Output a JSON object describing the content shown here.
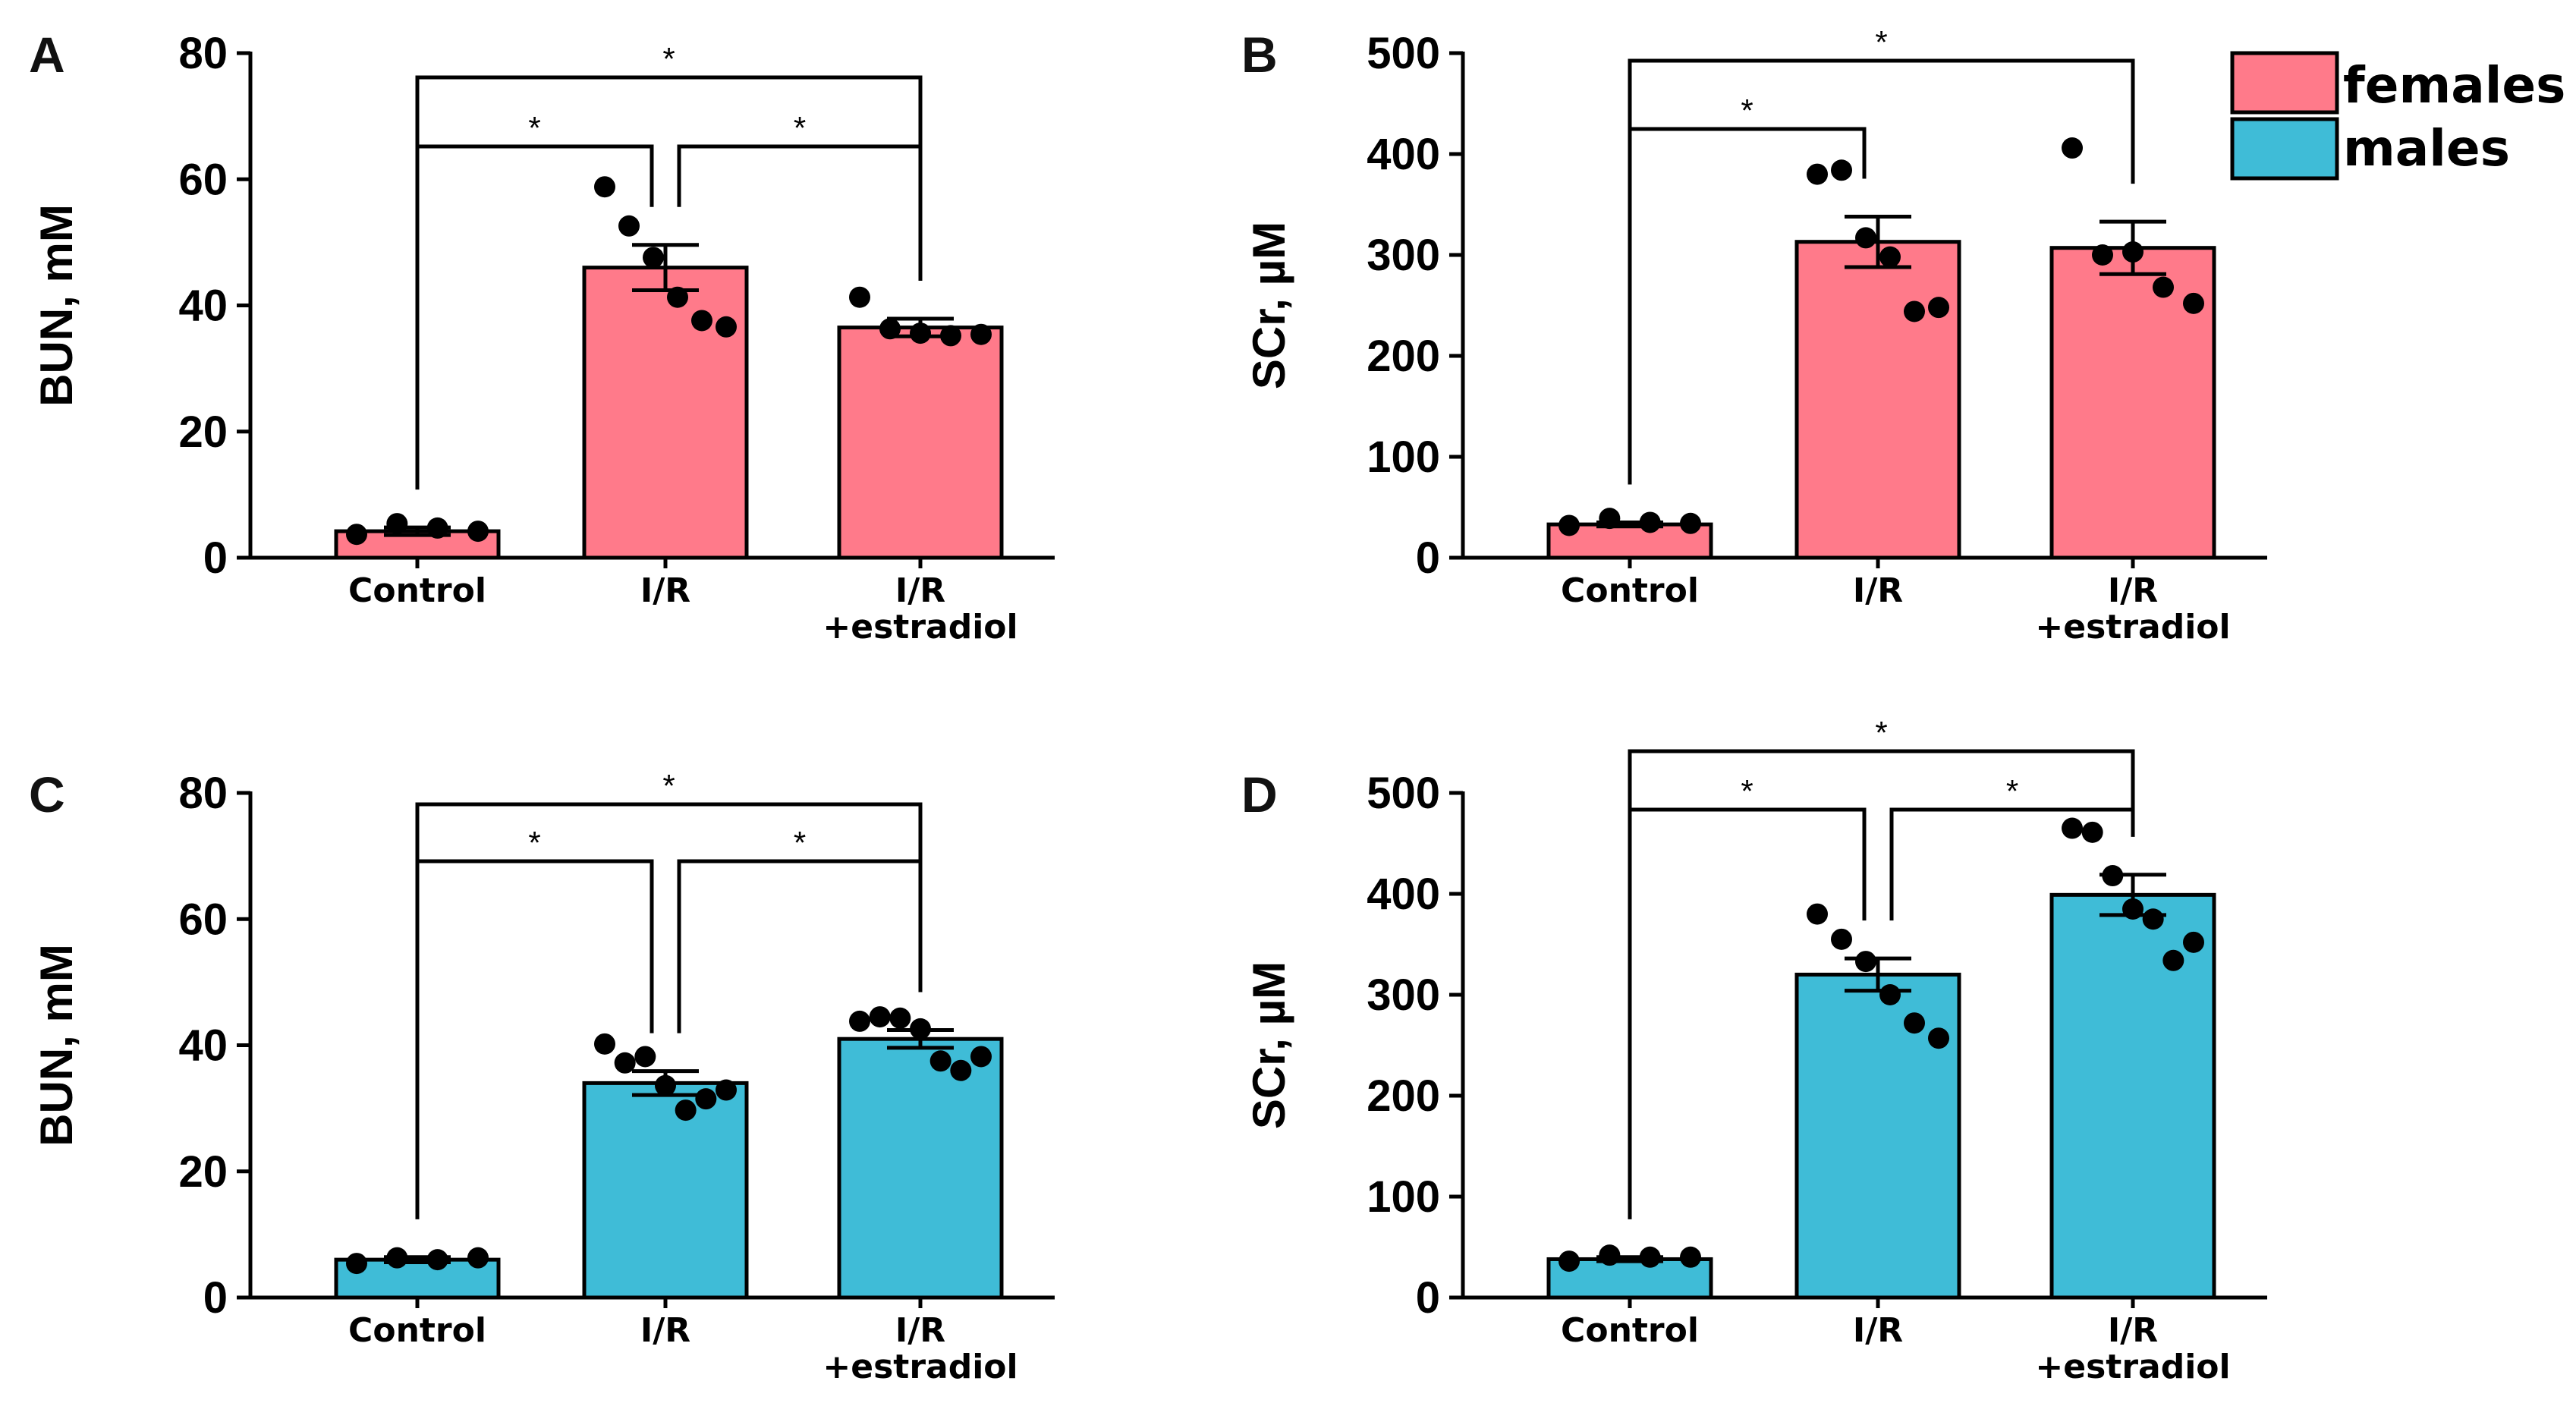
{
  "legend": [
    {
      "label": "females",
      "color": "#ff7a8a"
    },
    {
      "label": "males",
      "color": "#3fbcd7"
    }
  ],
  "chart_data": [
    {
      "panel": "A",
      "type": "bar",
      "ylabel": "BUN, mM",
      "ylim": [
        0,
        80
      ],
      "yticks": [
        0,
        20,
        40,
        60,
        80
      ],
      "categories": [
        "Control",
        "I/R",
        "I/R\n+estradiol"
      ],
      "group": "females",
      "color": "#ff7a8a",
      "values": [
        4.2,
        46,
        36.5
      ],
      "sem": [
        0.6,
        3.6,
        1.4
      ],
      "points": [
        [
          3.7,
          5.4,
          4.7,
          4.2
        ],
        [
          58.8,
          52.6,
          47.6,
          41.3,
          37.6,
          36.6
        ],
        [
          41.3,
          36.3,
          35.6,
          35.2,
          35.4
        ]
      ],
      "significance": [
        {
          "from": 0,
          "to": 2,
          "label": "*",
          "level": 3
        },
        {
          "from": 0,
          "to": 1,
          "label": "*",
          "level": 2
        },
        {
          "from": 1,
          "to": 2,
          "label": "*",
          "level": 2
        }
      ]
    },
    {
      "panel": "B",
      "type": "bar",
      "ylabel": "SCr, µM",
      "ylim": [
        0,
        500
      ],
      "yticks": [
        0,
        100,
        200,
        300,
        400,
        500
      ],
      "categories": [
        "Control",
        "I/R",
        "I/R\n+estradiol"
      ],
      "group": "females",
      "color": "#ff7a8a",
      "values": [
        33,
        313,
        307
      ],
      "sem": [
        2,
        25,
        26
      ],
      "points": [
        [
          32,
          39,
          35,
          34
        ],
        [
          380,
          384,
          317,
          298,
          244,
          248
        ],
        [
          406,
          300,
          303,
          268,
          252
        ]
      ],
      "significance": [
        {
          "from": 0,
          "to": 2,
          "label": "*",
          "level": 3
        },
        {
          "from": 0,
          "to": 1,
          "label": "*",
          "level": 2
        }
      ]
    },
    {
      "panel": "C",
      "type": "bar",
      "ylabel": "BUN, mM",
      "ylim": [
        0,
        80
      ],
      "yticks": [
        0,
        20,
        40,
        60,
        80
      ],
      "categories": [
        "Control",
        "I/R",
        "I/R\n+estradiol"
      ],
      "group": "males",
      "color": "#3fbcd7",
      "values": [
        6,
        34,
        41
      ],
      "sem": [
        0.4,
        1.9,
        1.4
      ],
      "points": [
        [
          5.4,
          6.3,
          6.0,
          6.3
        ],
        [
          40.2,
          37.2,
          38.2,
          33.6,
          29.7,
          31.5,
          32.9
        ],
        [
          43.8,
          44.5,
          44.3,
          42.6,
          37.5,
          36.0,
          38.2
        ]
      ],
      "significance": [
        {
          "from": 0,
          "to": 2,
          "label": "*",
          "level": 3
        },
        {
          "from": 0,
          "to": 1,
          "label": "*",
          "level": 2
        },
        {
          "from": 1,
          "to": 2,
          "label": "*",
          "level": 2
        }
      ]
    },
    {
      "panel": "D",
      "type": "bar",
      "ylabel": "SCr, µM",
      "ylim": [
        0,
        500
      ],
      "yticks": [
        0,
        100,
        200,
        300,
        400,
        500
      ],
      "categories": [
        "Control",
        "I/R",
        "I/R\n+estradiol"
      ],
      "group": "males",
      "color": "#3fbcd7",
      "values": [
        38,
        320,
        399
      ],
      "sem": [
        2,
        16,
        20
      ],
      "points": [
        [
          36,
          42,
          40,
          40
        ],
        [
          380,
          355,
          333,
          300,
          272,
          257
        ],
        [
          465,
          461,
          418,
          385,
          375,
          334,
          352
        ]
      ],
      "significance": [
        {
          "from": 0,
          "to": 2,
          "label": "*",
          "level": 3
        },
        {
          "from": 0,
          "to": 1,
          "label": "*",
          "level": 2
        },
        {
          "from": 1,
          "to": 2,
          "label": "*",
          "level": 2
        }
      ]
    }
  ]
}
